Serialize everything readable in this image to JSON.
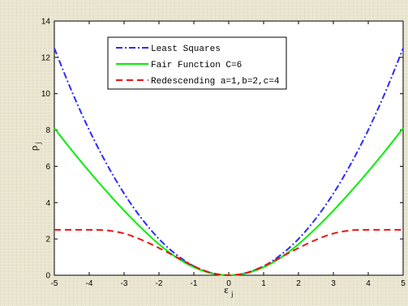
{
  "chart_data": {
    "type": "line",
    "xlabel": "ε",
    "xlabel_subscript": "j",
    "ylabel": "ρ",
    "ylabel_subscript": "j",
    "xlim": [
      -5,
      5
    ],
    "ylim": [
      0,
      14
    ],
    "xticks": [
      -5,
      -4,
      -3,
      -2,
      -1,
      0,
      1,
      2,
      3,
      4,
      5
    ],
    "yticks": [
      0,
      2,
      4,
      6,
      8,
      10,
      12,
      14
    ],
    "grid": false,
    "legend_position": "top-center",
    "x": [
      -5,
      -4.5,
      -4,
      -3.5,
      -3,
      -2.5,
      -2,
      -1.5,
      -1,
      -0.5,
      0,
      0.5,
      1,
      1.5,
      2,
      2.5,
      3,
      3.5,
      4,
      4.5,
      5
    ],
    "series": [
      {
        "name": "Least Squares",
        "color": "#2b2bff",
        "dash": "dashdot",
        "values": [
          12.5,
          10.13,
          8.0,
          6.13,
          4.5,
          3.13,
          2.0,
          1.13,
          0.5,
          0.13,
          0,
          0.13,
          0.5,
          1.13,
          2.0,
          3.13,
          4.5,
          6.13,
          8.0,
          10.13,
          12.5
        ]
      },
      {
        "name": "Fair Function C=6",
        "color": "#00ee00",
        "dash": "solid",
        "values": [
          8.1,
          6.88,
          5.72,
          4.61,
          3.56,
          2.59,
          1.71,
          0.98,
          0.44,
          0.11,
          0,
          0.11,
          0.44,
          0.98,
          1.71,
          2.59,
          3.56,
          4.61,
          5.72,
          6.88,
          8.1
        ]
      },
      {
        "name": "Redescending a=1,b=2,c=4",
        "color": "#ee1111",
        "dash": "dashed",
        "values": [
          2.5,
          2.5,
          2.5,
          2.47,
          2.3,
          1.95,
          1.5,
          1.0,
          0.5,
          0.13,
          0,
          0.13,
          0.5,
          1.0,
          1.5,
          1.95,
          2.3,
          2.47,
          2.5,
          2.5,
          2.5
        ]
      }
    ]
  }
}
